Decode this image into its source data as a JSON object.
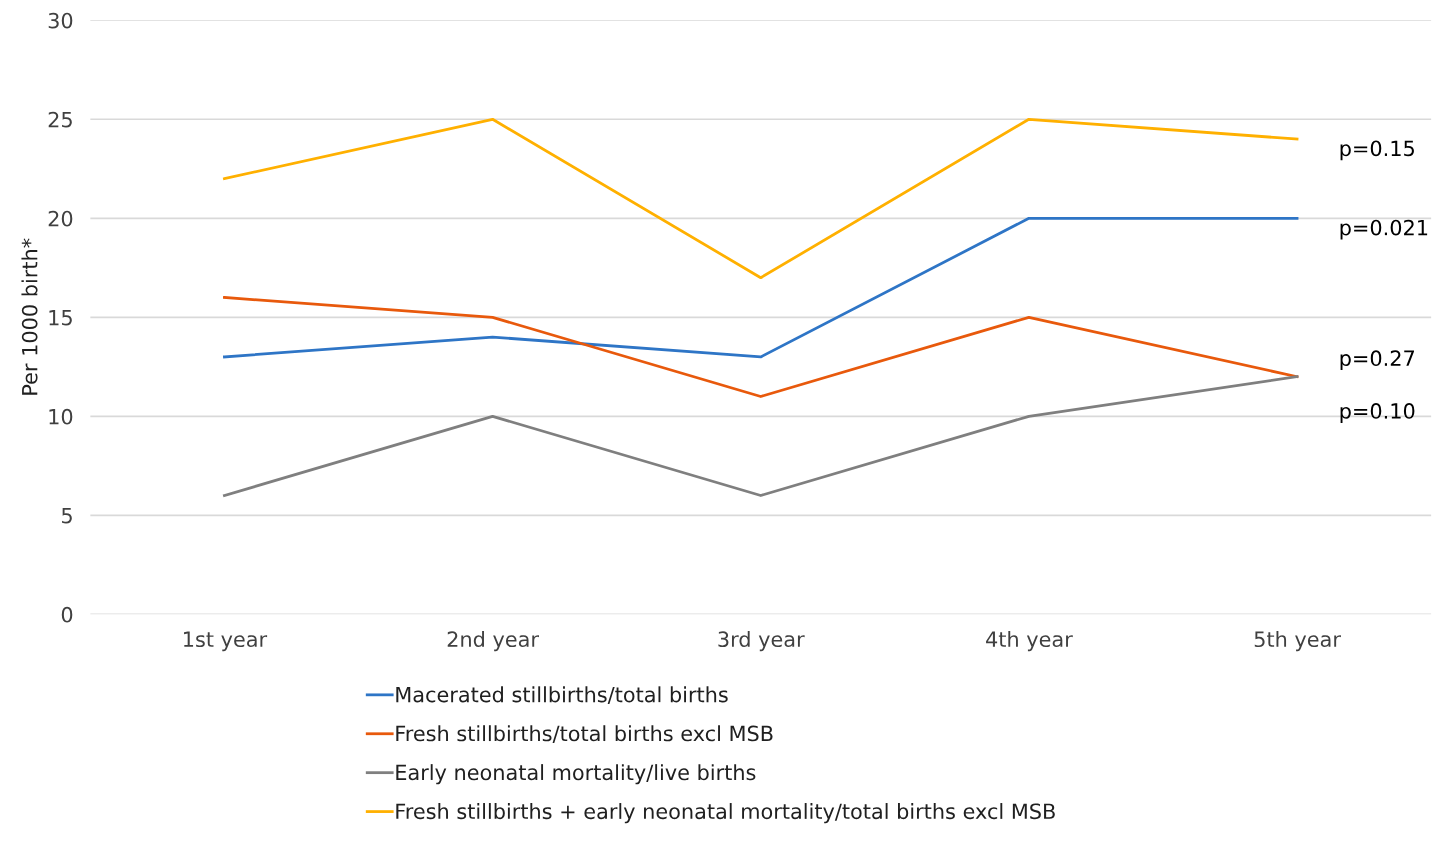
{
  "chart_data": {
    "type": "line",
    "ylabel": "Per 1000 birth*",
    "categories": [
      "1st year",
      "2nd year",
      "3rd year",
      "4th year",
      "5th year"
    ],
    "series": [
      {
        "name": "Macerated stillbirths/total births",
        "color": "#2e75c6",
        "values": [
          13,
          14,
          13,
          20,
          20
        ]
      },
      {
        "name": "Fresh stillbirths/total births excl MSB",
        "color": "#e8590c",
        "values": [
          16,
          15,
          11,
          15,
          12
        ]
      },
      {
        "name": "Early neonatal mortality/live births",
        "color": "#7f7f7f",
        "values": [
          6,
          10,
          6,
          10,
          12
        ]
      },
      {
        "name": "Fresh stillbirths + early neonatal mortality/total births excl MSB",
        "color": "#ffb000",
        "values": [
          22,
          25,
          17,
          25,
          24
        ]
      }
    ],
    "annotations": [
      {
        "text": "p=0.15",
        "x": "5th year",
        "y": 24
      },
      {
        "text": "p=0.021",
        "x": "5th year",
        "y": 20
      },
      {
        "text": "p=0.27",
        "x": "5th year",
        "y": 12
      },
      {
        "text": "p=0.10",
        "x": "5th year",
        "y": 12
      }
    ],
    "ylim": [
      0,
      30
    ],
    "yticks": [
      0,
      5,
      10,
      15,
      20,
      25,
      30
    ],
    "grid": "y",
    "legend": "bottom",
    "marker": "none",
    "line_style": "solid"
  }
}
